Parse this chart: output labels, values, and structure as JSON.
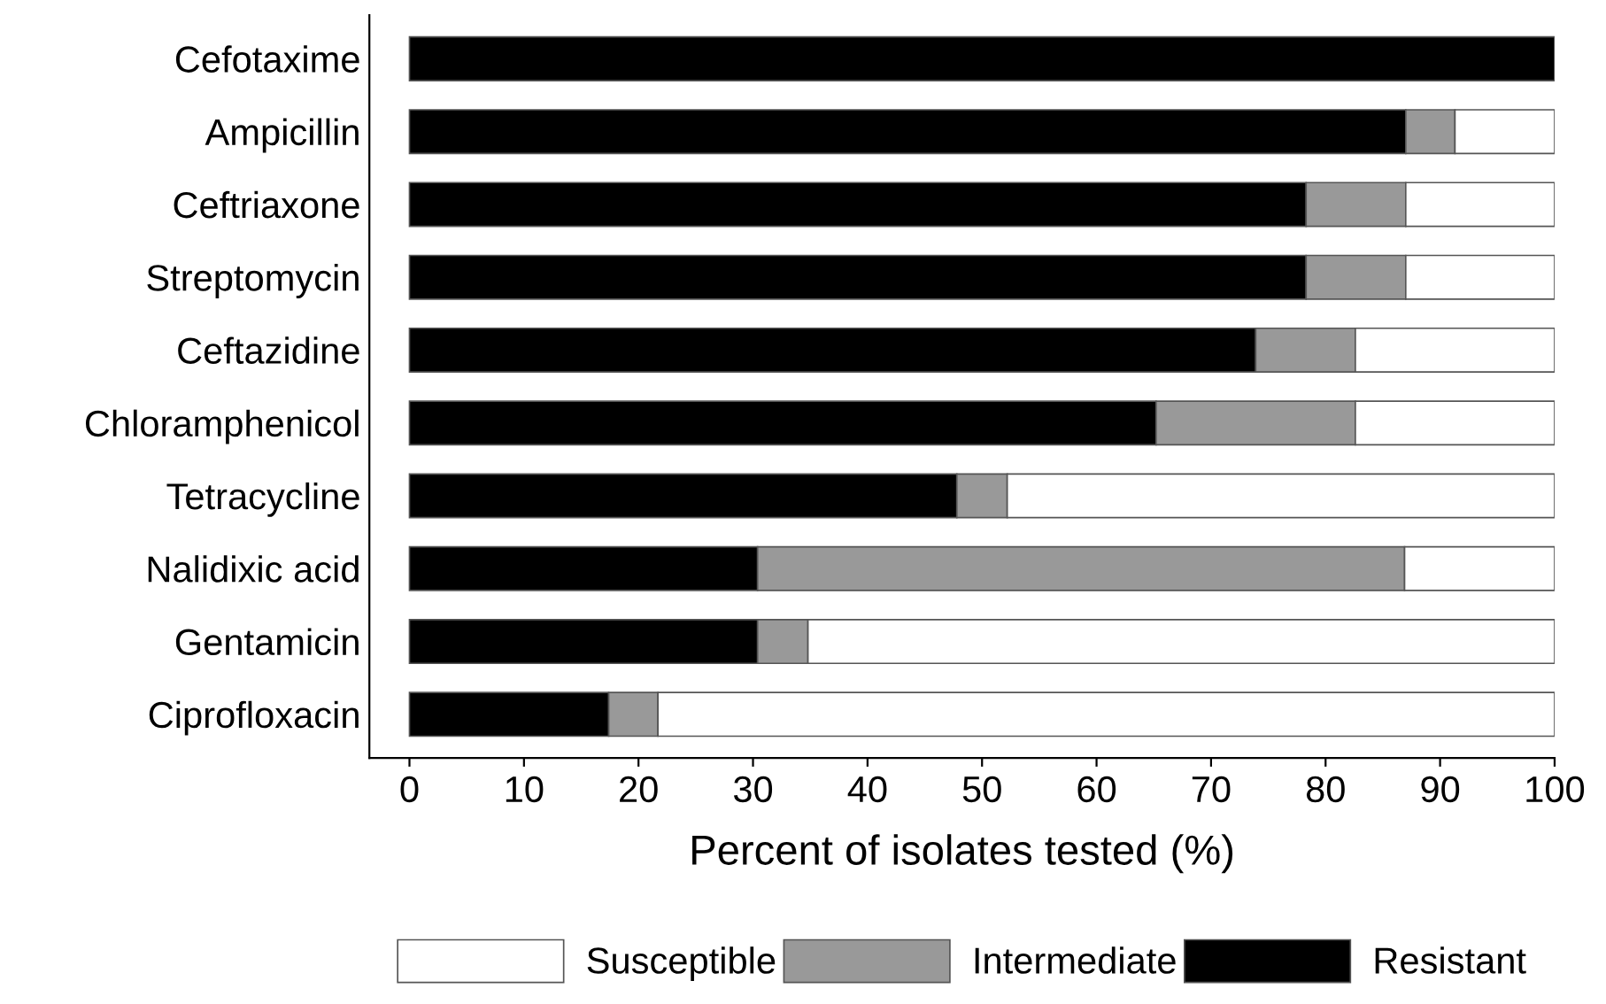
{
  "chart_data": {
    "type": "bar",
    "orientation": "horizontal",
    "stacked": true,
    "xlabel": "Percent of isolates tested (%)",
    "categories": [
      "Cefotaxime",
      "Ampicillin",
      "Ceftriaxone",
      "Streptomycin",
      "Ceftazidine",
      "Chloramphenicol",
      "Tetracycline",
      "Nalidixic acid",
      "Gentamicin",
      "Ciprofloxacin"
    ],
    "series": [
      {
        "name": "Resistant",
        "color": "#000000",
        "values": [
          100,
          87.0,
          78.3,
          78.3,
          73.9,
          65.2,
          47.8,
          30.4,
          30.4,
          17.4
        ]
      },
      {
        "name": "Intermediate",
        "color": "#999999",
        "values": [
          0,
          4.3,
          8.7,
          8.7,
          8.7,
          17.4,
          4.4,
          56.5,
          4.4,
          4.3
        ]
      },
      {
        "name": "Susceptible",
        "color": "#ffffff",
        "values": [
          0,
          8.7,
          13.0,
          13.0,
          17.4,
          17.4,
          47.8,
          13.1,
          65.2,
          78.3
        ]
      }
    ],
    "xlim": [
      -3.5,
      100
    ],
    "xticks": [
      0,
      10,
      20,
      30,
      40,
      50,
      60,
      70,
      80,
      90,
      100
    ],
    "grid": false,
    "legend": "bottom"
  }
}
